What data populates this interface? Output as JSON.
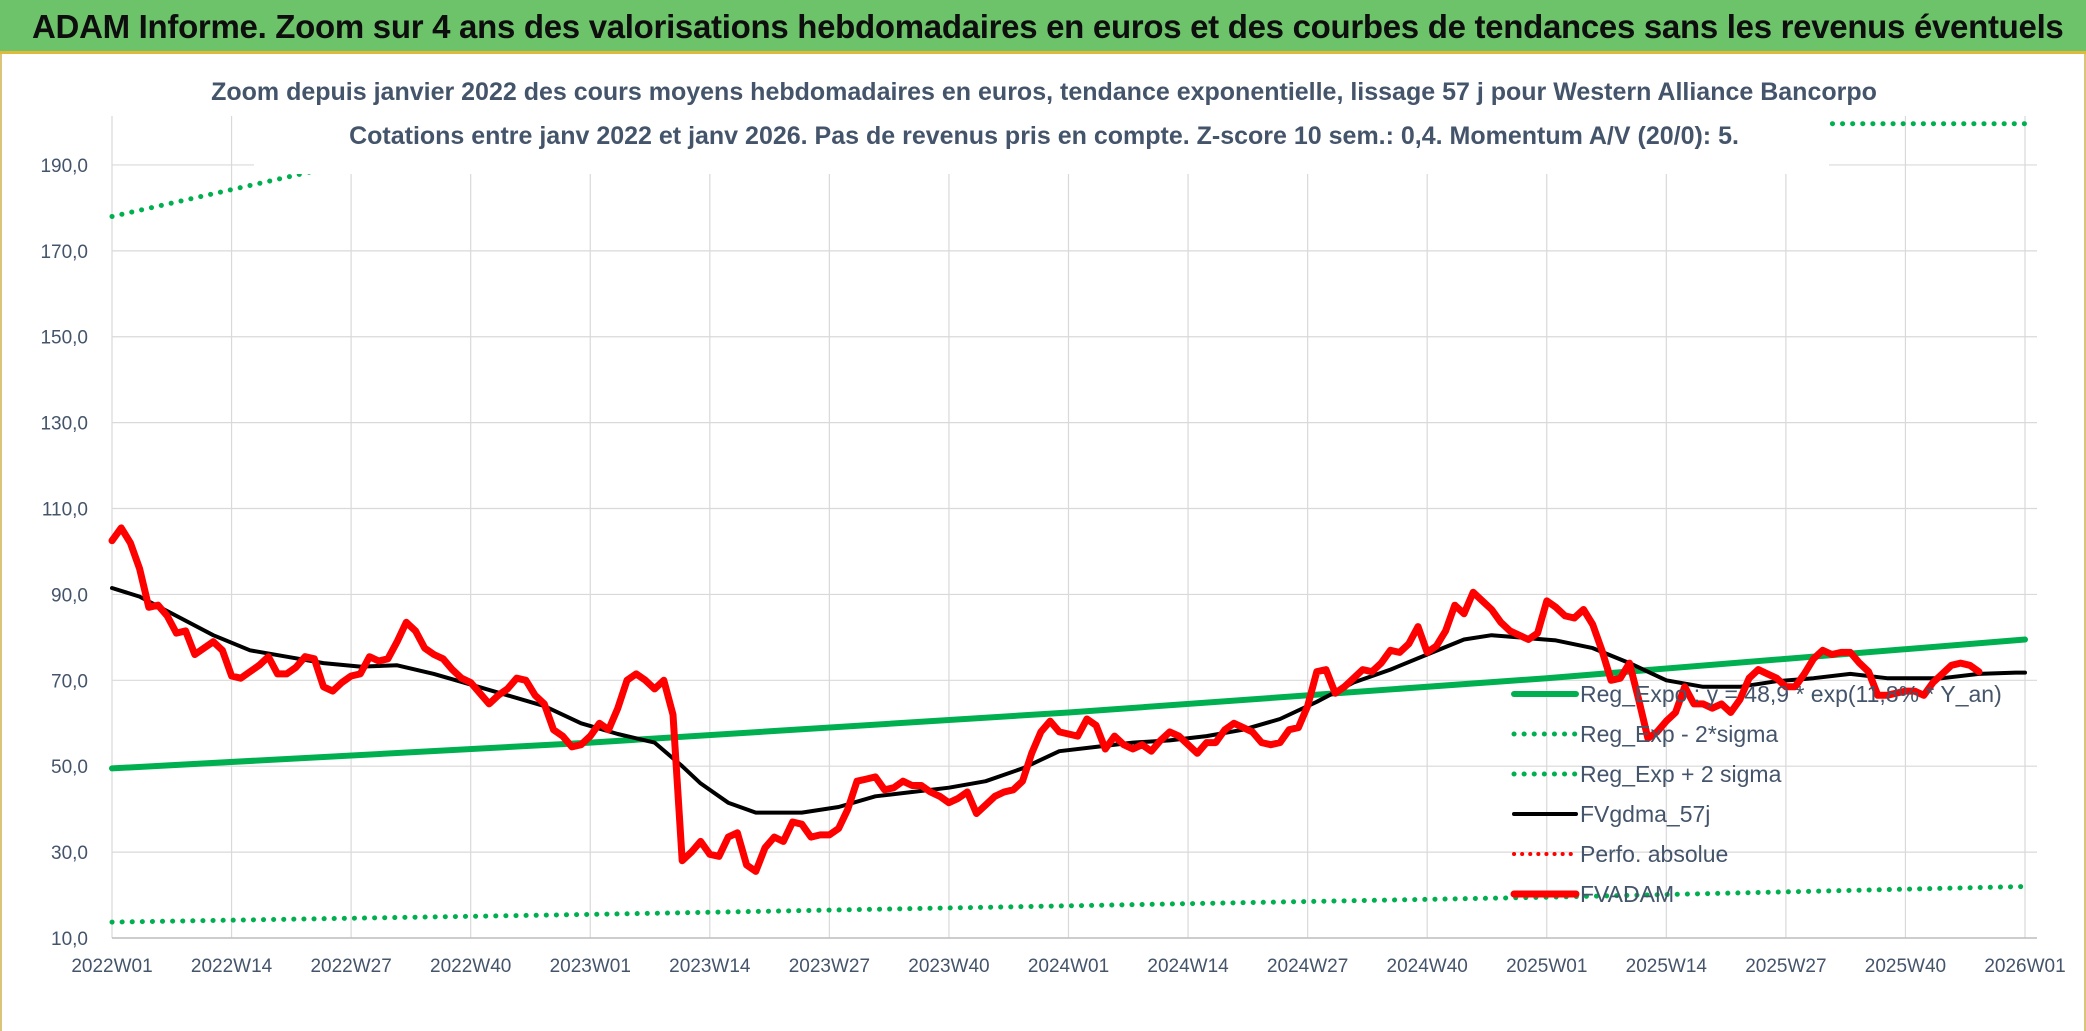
{
  "banner": {
    "title": "ADAM Informe. Zoom sur 4 ans des valorisations hebdomadaires en euros et des courbes de tendances sans les revenus éventuels"
  },
  "colors": {
    "banner_bg": "#6cc36a",
    "regression": "#00b050",
    "smoothing": "#000000",
    "price": "#ff0000",
    "perf": "#ff0000",
    "text": "#44546a",
    "grid": "#d9d9d9"
  },
  "chart_data": {
    "type": "line",
    "title": "Zoom depuis janvier 2022 des cours moyens hebdomadaires en euros, tendance exponentielle, lissage 57 j pour Western Alliance Bancorpo",
    "subtitle": "Cotations entre janv 2022 et janv 2026. Pas de revenus pris en compte. Z-score 10 sem.: 0,4. Momentum A/V (20/0): 5.",
    "ylim": [
      10,
      200
    ],
    "yticks": [
      "10,0",
      "30,0",
      "50,0",
      "70,0",
      "90,0",
      "110,0",
      "130,0",
      "150,0",
      "170,0",
      "190,0"
    ],
    "xticks": [
      "2022W01",
      "2022W14",
      "2022W27",
      "2022W40",
      "2023W01",
      "2023W14",
      "2023W27",
      "2023W40",
      "2024W01",
      "2024W14",
      "2024W27",
      "2024W40",
      "2025W01",
      "2025W14",
      "2025W27",
      "2025W40",
      "2026W01"
    ],
    "grid": true,
    "legend_position": "bottom-right",
    "series": [
      {
        "name": "Reg_Expo : y = 48,9 * exp(11,8% * Y_an)",
        "style": "solid-green",
        "keypoints": [
          [
            "2022W01",
            49.5
          ],
          [
            "2023W01",
            55.5
          ],
          [
            "2024W01",
            62.5
          ],
          [
            "2025W01",
            70.5
          ],
          [
            "2026W01",
            79.5
          ]
        ]
      },
      {
        "name": "Reg_Exp - 2*sigma",
        "style": "dotted-green",
        "keypoints": [
          [
            "2022W01",
            13.7
          ],
          [
            "2023W01",
            15.5
          ],
          [
            "2024W01",
            17.5
          ],
          [
            "2025W01",
            19.5
          ],
          [
            "2026W01",
            22
          ]
        ]
      },
      {
        "name": "Reg_Exp + 2 sigma",
        "style": "dotted-green",
        "keypoints": [
          [
            "2022W01",
            178
          ],
          [
            "2022W28",
            191
          ],
          [
            "2025W30",
            199.6
          ],
          [
            "2026W01",
            199.6
          ]
        ]
      },
      {
        "name": "FVgdma_57j",
        "style": "solid-black",
        "keypoints": [
          [
            "2022W01",
            91.5
          ],
          [
            "2022W04",
            89.5
          ],
          [
            "2022W08",
            85
          ],
          [
            "2022W12",
            80.5
          ],
          [
            "2022W16",
            77
          ],
          [
            "2022W20",
            75.5
          ],
          [
            "2022W24",
            74
          ],
          [
            "2022W28",
            73.2
          ],
          [
            "2022W32",
            73.5
          ],
          [
            "2022W36",
            71.5
          ],
          [
            "2022W40",
            69
          ],
          [
            "2022W44",
            66.5
          ],
          [
            "2022W48",
            64
          ],
          [
            "2022W52",
            60
          ],
          [
            "2023W04",
            57.5
          ],
          [
            "2023W08",
            55.5
          ],
          [
            "2023W11",
            50
          ],
          [
            "2023W13",
            46
          ],
          [
            "2023W16",
            41.5
          ],
          [
            "2023W19",
            39.2
          ],
          [
            "2023W24",
            39.2
          ],
          [
            "2023W28",
            40.5
          ],
          [
            "2023W32",
            43
          ],
          [
            "2023W36",
            44
          ],
          [
            "2023W40",
            45
          ],
          [
            "2023W44",
            46.5
          ],
          [
            "2023W48",
            49.5
          ],
          [
            "2023W52",
            53.5
          ],
          [
            "2024W04",
            54.5
          ],
          [
            "2024W08",
            55.5
          ],
          [
            "2024W12",
            56
          ],
          [
            "2024W16",
            57
          ],
          [
            "2024W20",
            58.5
          ],
          [
            "2024W24",
            61
          ],
          [
            "2024W28",
            65
          ],
          [
            "2024W32",
            69.5
          ],
          [
            "2024W36",
            72.5
          ],
          [
            "2024W40",
            76
          ],
          [
            "2024W44",
            79.5
          ],
          [
            "2024W47",
            80.5
          ],
          [
            "2024W51",
            79.8
          ],
          [
            "2025W02",
            79.3
          ],
          [
            "2025W06",
            77.5
          ],
          [
            "2025W10",
            74
          ],
          [
            "2025W14",
            70
          ],
          [
            "2025W18",
            68.5
          ],
          [
            "2025W22",
            68.5
          ],
          [
            "2025W26",
            69.8
          ],
          [
            "2025W30",
            70.5
          ],
          [
            "2025W34",
            71.5
          ],
          [
            "2025W38",
            70.5
          ],
          [
            "2025W44",
            70.5
          ],
          [
            "2025W48",
            71.5
          ],
          [
            "2025W52",
            71.8
          ],
          [
            "2026W01",
            71.8
          ]
        ]
      },
      {
        "name": "Perfo. absolue",
        "style": "dotted-red",
        "keypoints": []
      },
      {
        "name": "FVADAM",
        "style": "solid-red",
        "keypoints": [
          [
            "2022W01",
            102.5
          ],
          [
            "2022W02",
            105.5
          ],
          [
            "2022W03",
            102
          ],
          [
            "2022W04",
            96
          ],
          [
            "2022W05",
            87
          ],
          [
            "2022W06",
            87.5
          ],
          [
            "2022W07",
            85
          ],
          [
            "2022W08",
            81
          ],
          [
            "2022W09",
            81.5
          ],
          [
            "2022W10",
            76
          ],
          [
            "2022W11",
            77.5
          ],
          [
            "2022W12",
            79
          ],
          [
            "2022W13",
            77
          ],
          [
            "2022W14",
            71
          ],
          [
            "2022W15",
            70.5
          ],
          [
            "2022W16",
            72
          ],
          [
            "2022W17",
            73.5
          ],
          [
            "2022W18",
            75.5
          ],
          [
            "2022W19",
            71.5
          ],
          [
            "2022W20",
            71.5
          ],
          [
            "2022W21",
            73
          ],
          [
            "2022W22",
            75.5
          ],
          [
            "2022W23",
            75
          ],
          [
            "2022W24",
            68.5
          ],
          [
            "2022W25",
            67.5
          ],
          [
            "2022W26",
            69.5
          ],
          [
            "2022W27",
            71
          ],
          [
            "2022W28",
            71.5
          ],
          [
            "2022W29",
            75.5
          ],
          [
            "2022W30",
            74.5
          ],
          [
            "2022W31",
            75
          ],
          [
            "2022W32",
            79
          ],
          [
            "2022W33",
            83.5
          ],
          [
            "2022W34",
            81.5
          ],
          [
            "2022W35",
            77.5
          ],
          [
            "2022W36",
            76
          ],
          [
            "2022W37",
            75
          ],
          [
            "2022W38",
            72.5
          ],
          [
            "2022W39",
            70.5
          ],
          [
            "2022W40",
            69.5
          ],
          [
            "2022W41",
            67
          ],
          [
            "2022W42",
            64.5
          ],
          [
            "2022W43",
            66.5
          ],
          [
            "2022W44",
            68
          ],
          [
            "2022W45",
            70.5
          ],
          [
            "2022W46",
            70
          ],
          [
            "2022W47",
            66.5
          ],
          [
            "2022W48",
            64.5
          ],
          [
            "2022W49",
            58.5
          ],
          [
            "2022W50",
            57
          ],
          [
            "2022W51",
            54.5
          ],
          [
            "2022W52",
            55
          ],
          [
            "2023W01",
            57
          ],
          [
            "2023W02",
            60
          ],
          [
            "2023W03",
            58.5
          ],
          [
            "2023W04",
            63.5
          ],
          [
            "2023W05",
            70
          ],
          [
            "2023W06",
            71.5
          ],
          [
            "2023W07",
            70
          ],
          [
            "2023W08",
            68
          ],
          [
            "2023W09",
            70
          ],
          [
            "2023W10",
            62
          ],
          [
            "2023W11",
            28
          ],
          [
            "2023W12",
            30
          ],
          [
            "2023W13",
            32.5
          ],
          [
            "2023W14",
            29.5
          ],
          [
            "2023W15",
            29
          ],
          [
            "2023W16",
            33.5
          ],
          [
            "2023W17",
            34.5
          ],
          [
            "2023W18",
            27
          ],
          [
            "2023W19",
            25.5
          ],
          [
            "2023W20",
            31
          ],
          [
            "2023W21",
            33.5
          ],
          [
            "2023W22",
            32.5
          ],
          [
            "2023W23",
            37
          ],
          [
            "2023W24",
            36.5
          ],
          [
            "2023W25",
            33.5
          ],
          [
            "2023W26",
            34
          ],
          [
            "2023W27",
            34
          ],
          [
            "2023W28",
            35.5
          ],
          [
            "2023W29",
            40
          ],
          [
            "2023W30",
            46.5
          ],
          [
            "2023W31",
            47
          ],
          [
            "2023W32",
            47.5
          ],
          [
            "2023W33",
            44.5
          ],
          [
            "2023W34",
            45
          ],
          [
            "2023W35",
            46.5
          ],
          [
            "2023W36",
            45.5
          ],
          [
            "2023W37",
            45.5
          ],
          [
            "2023W38",
            44
          ],
          [
            "2023W39",
            43
          ],
          [
            "2023W40",
            41.5
          ],
          [
            "2023W41",
            42.5
          ],
          [
            "2023W42",
            44
          ],
          [
            "2023W43",
            39
          ],
          [
            "2023W44",
            41
          ],
          [
            "2023W45",
            43
          ],
          [
            "2023W46",
            44
          ],
          [
            "2023W47",
            44.5
          ],
          [
            "2023W48",
            46.5
          ],
          [
            "2023W49",
            53
          ],
          [
            "2023W50",
            58
          ],
          [
            "2023W51",
            60.5
          ],
          [
            "2023W52",
            58
          ],
          [
            "2024W01",
            57.5
          ],
          [
            "2024W02",
            57
          ],
          [
            "2024W03",
            61
          ],
          [
            "2024W04",
            59.5
          ],
          [
            "2024W05",
            54
          ],
          [
            "2024W06",
            57
          ],
          [
            "2024W07",
            55
          ],
          [
            "2024W08",
            54
          ],
          [
            "2024W09",
            55
          ],
          [
            "2024W10",
            53.5
          ],
          [
            "2024W11",
            56
          ],
          [
            "2024W12",
            58
          ],
          [
            "2024W13",
            57
          ],
          [
            "2024W14",
            55
          ],
          [
            "2024W15",
            53
          ],
          [
            "2024W16",
            55.5
          ],
          [
            "2024W17",
            55.5
          ],
          [
            "2024W18",
            58.5
          ],
          [
            "2024W19",
            60
          ],
          [
            "2024W20",
            59
          ],
          [
            "2024W21",
            58
          ],
          [
            "2024W22",
            55.5
          ],
          [
            "2024W23",
            55
          ],
          [
            "2024W24",
            55.5
          ],
          [
            "2024W25",
            58.5
          ],
          [
            "2024W26",
            59
          ],
          [
            "2024W27",
            64
          ],
          [
            "2024W28",
            72
          ],
          [
            "2024W29",
            72.5
          ],
          [
            "2024W30",
            67
          ],
          [
            "2024W31",
            68.5
          ],
          [
            "2024W32",
            70.5
          ],
          [
            "2024W33",
            72.5
          ],
          [
            "2024W34",
            72
          ],
          [
            "2024W35",
            74
          ],
          [
            "2024W36",
            77
          ],
          [
            "2024W37",
            76.5
          ],
          [
            "2024W38",
            78.5
          ],
          [
            "2024W39",
            82.5
          ],
          [
            "2024W40",
            76.5
          ],
          [
            "2024W41",
            78
          ],
          [
            "2024W42",
            81.5
          ],
          [
            "2024W43",
            87.5
          ],
          [
            "2024W44",
            85.5
          ],
          [
            "2024W45",
            90.5
          ],
          [
            "2024W46",
            88.5
          ],
          [
            "2024W47",
            86.5
          ],
          [
            "2024W48",
            83.5
          ],
          [
            "2024W49",
            81.5
          ],
          [
            "2024W50",
            80.5
          ],
          [
            "2024W51",
            79.5
          ],
          [
            "2024W52",
            81
          ],
          [
            "2025W01",
            88.5
          ],
          [
            "2025W02",
            87
          ],
          [
            "2025W03",
            85
          ],
          [
            "2025W04",
            84.5
          ],
          [
            "2025W05",
            86.5
          ],
          [
            "2025W06",
            83
          ],
          [
            "2025W07",
            77
          ],
          [
            "2025W08",
            70
          ],
          [
            "2025W09",
            70.5
          ],
          [
            "2025W10",
            74
          ],
          [
            "2025W11",
            65.5
          ],
          [
            "2025W12",
            56.5
          ],
          [
            "2025W13",
            58
          ],
          [
            "2025W14",
            60.5
          ],
          [
            "2025W15",
            62.5
          ],
          [
            "2025W16",
            68.5
          ],
          [
            "2025W17",
            64.5
          ],
          [
            "2025W18",
            64.5
          ],
          [
            "2025W19",
            63.5
          ],
          [
            "2025W20",
            64.5
          ],
          [
            "2025W21",
            62.5
          ],
          [
            "2025W22",
            65.5
          ],
          [
            "2025W23",
            70.5
          ],
          [
            "2025W24",
            72.5
          ],
          [
            "2025W25",
            71.5
          ],
          [
            "2025W26",
            70.5
          ],
          [
            "2025W27",
            68.5
          ],
          [
            "2025W28",
            68.5
          ],
          [
            "2025W29",
            71.5
          ],
          [
            "2025W30",
            75
          ],
          [
            "2025W31",
            77
          ],
          [
            "2025W32",
            76
          ],
          [
            "2025W33",
            76.5
          ],
          [
            "2025W34",
            76.5
          ],
          [
            "2025W35",
            74
          ],
          [
            "2025W36",
            72
          ],
          [
            "2025W37",
            66.5
          ],
          [
            "2025W38",
            66.5
          ],
          [
            "2025W39",
            67
          ],
          [
            "2025W40",
            67.5
          ],
          [
            "2025W41",
            67.5
          ],
          [
            "2025W42",
            66.5
          ],
          [
            "2025W43",
            69.5
          ],
          [
            "2025W44",
            71.5
          ],
          [
            "2025W45",
            73.5
          ],
          [
            "2025W46",
            74
          ],
          [
            "2025W47",
            73.5
          ],
          [
            "2025W48",
            72
          ]
        ]
      }
    ]
  }
}
